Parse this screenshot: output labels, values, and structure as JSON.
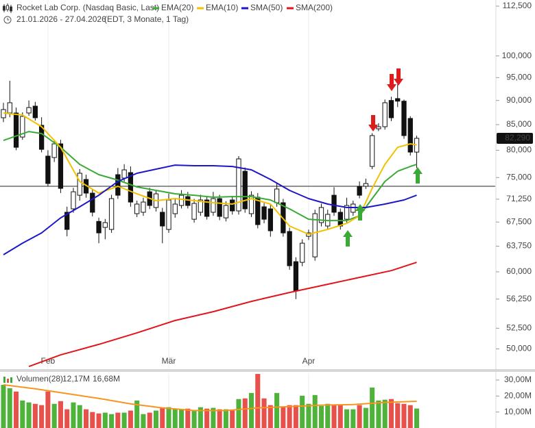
{
  "chart_data": [
    {
      "type": "candlestick",
      "title": "Rocket Lab Corp. (Nasdaq Basic, Last)",
      "subtitle": "21.01.2026 - 27.04.2026",
      "subtitle_note": "(EDT, 3 Monate, 1 Tag)",
      "log": true,
      "ylim": [
        47740,
        114150
      ],
      "xlim": [
        -0.54,
        77.35
      ],
      "xticks": [
        {
          "value": 7,
          "label": "Feb"
        },
        {
          "value": 26,
          "label": "Mär"
        },
        {
          "value": 48,
          "label": "Apr"
        }
      ],
      "yticks": [
        {
          "value": 112500,
          "label": "112,500"
        },
        {
          "value": 100000,
          "label": "100,000"
        },
        {
          "value": 95000,
          "label": "95,000"
        },
        {
          "value": 90000,
          "label": "90,000"
        },
        {
          "value": 85000,
          "label": "85,000"
        },
        {
          "value": 80000,
          "label": "80,000"
        },
        {
          "value": 75000,
          "label": "75,000"
        },
        {
          "value": 71250,
          "label": "71,250"
        },
        {
          "value": 67500,
          "label": "67,500"
        },
        {
          "value": 63750,
          "label": "63,750"
        },
        {
          "value": 60000,
          "label": "60,000"
        },
        {
          "value": 56250,
          "label": "56,250"
        },
        {
          "value": 52500,
          "label": "52,500"
        },
        {
          "value": 50000,
          "label": "50,000"
        }
      ],
      "last_price": {
        "value": 82290,
        "label": "82,290"
      },
      "reference_line": 73460,
      "open": [
        86390,
        87370,
        87370,
        82540,
        87370,
        88800,
        84860,
        78900,
        78630,
        81220,
        69080,
        69640,
        71920,
        74660,
        72280,
        67600,
        66650,
        66330,
        75510,
        74900,
        75880,
        68850,
        69080,
        72510,
        69860,
        69080,
        66330,
        68850,
        70200,
        71690,
        67950,
        69080,
        71120,
        69080,
        71350,
        68170,
        71120,
        69300,
        76120,
        68850,
        71580,
        69980,
        69640,
        70660,
        70660,
        66010,
        61460,
        61360,
        65260,
        62160,
        67410,
        66870,
        71920,
        69080,
        67950,
        69080,
        73460,
        73460,
        76990,
        84170,
        84580,
        90000,
        90400,
        89850,
        86250,
        79650
      ],
      "high": [
        89500,
        94280,
        88500,
        87500,
        90000,
        89700,
        86500,
        80000,
        82000,
        82000,
        70000,
        73200,
        76500,
        75500,
        73000,
        68200,
        68000,
        72000,
        76700,
        77400,
        77000,
        71000,
        71500,
        73200,
        72800,
        69800,
        72200,
        71400,
        72800,
        72500,
        71300,
        72000,
        71800,
        72500,
        72000,
        70900,
        71800,
        78900,
        76800,
        72600,
        72300,
        70600,
        70300,
        74000,
        71300,
        66600,
        62100,
        64800,
        66300,
        69500,
        70500,
        69500,
        73300,
        69700,
        71500,
        71000,
        74300,
        74800,
        83300,
        85300,
        90200,
        90800,
        93500,
        90200,
        86700,
        82800
      ],
      "low": [
        85500,
        86500,
        80000,
        82000,
        86800,
        85800,
        79600,
        73500,
        77800,
        72300,
        65260,
        69000,
        71000,
        71500,
        68400,
        64200,
        64800,
        65800,
        71300,
        74300,
        70000,
        68300,
        68500,
        69600,
        69200,
        64200,
        65800,
        68200,
        69700,
        69700,
        67400,
        68500,
        67900,
        68500,
        67800,
        67600,
        68700,
        68700,
        69000,
        68300,
        66500,
        67300,
        65200,
        70000,
        65200,
        60300,
        56250,
        60800,
        64700,
        61600,
        66800,
        66300,
        68500,
        66300,
        67400,
        68500,
        71400,
        73000,
        76500,
        83700,
        84000,
        85700,
        88600,
        82200,
        79000,
        76700
      ],
      "close": [
        88080,
        89520,
        80560,
        86670,
        88500,
        86390,
        80170,
        73940,
        81220,
        73100,
        66330,
        72510,
        75760,
        72280,
        69080,
        65790,
        67410,
        71350,
        71920,
        76370,
        70770,
        70430,
        70770,
        70200,
        72160,
        66870,
        71120,
        70430,
        71920,
        70200,
        70540,
        71120,
        68410,
        71350,
        68410,
        70200,
        69300,
        78380,
        69640,
        71920,
        67090,
        67950,
        66120,
        72990,
        65790,
        60870,
        57330,
        64210,
        65790,
        68850,
        69860,
        68740,
        69080,
        66870,
        70200,
        70430,
        71920,
        73940,
        82820,
        84580,
        89520,
        86390,
        89850,
        82820,
        79650,
        82290
      ],
      "series": [
        {
          "name": "EMA(20)",
          "color": "#3aa935",
          "x": [
            0,
            4,
            6,
            9,
            12,
            15,
            18,
            21,
            24,
            27,
            30,
            33,
            36,
            39,
            42,
            45,
            48,
            51,
            54,
            56,
            58,
            60,
            62,
            64,
            65
          ],
          "values": [
            81880,
            83620,
            83220,
            80560,
            77370,
            75510,
            74540,
            73340,
            72750,
            72160,
            71920,
            71580,
            71690,
            71690,
            71120,
            69640,
            67950,
            67730,
            67730,
            68510,
            71350,
            74300,
            76120,
            76990,
            77370
          ]
        },
        {
          "name": "EMA(10)",
          "color": "#f2c200",
          "x": [
            0,
            3,
            6,
            9,
            12,
            15,
            18,
            21,
            24,
            27,
            30,
            33,
            36,
            39,
            42,
            45,
            48,
            51,
            54,
            56,
            58,
            60,
            62,
            64,
            65
          ],
          "values": [
            87370,
            86950,
            84580,
            80560,
            74300,
            72280,
            73460,
            72160,
            71000,
            71350,
            71000,
            70660,
            70430,
            71350,
            70430,
            66870,
            65580,
            66330,
            67300,
            68510,
            73100,
            77370,
            80560,
            81220,
            81000
          ]
        },
        {
          "name": "SMA(50)",
          "color": "#1c16c8",
          "x": [
            0,
            3,
            6,
            9,
            12,
            15,
            18,
            21,
            24,
            27,
            30,
            33,
            36,
            39,
            42,
            45,
            48,
            51,
            54,
            57,
            60,
            63,
            65
          ],
          "values": [
            62470,
            64210,
            65790,
            68170,
            69980,
            71920,
            74300,
            75760,
            76500,
            77240,
            77120,
            77120,
            76990,
            76370,
            74660,
            72750,
            71350,
            70430,
            69860,
            69860,
            70430,
            71120,
            71920
          ]
        },
        {
          "name": "SMA(200)",
          "color": "#e2141b",
          "x": [
            4,
            9,
            15,
            21,
            27,
            33,
            39,
            45,
            51,
            57,
            61,
            65
          ],
          "values": [
            47960,
            49300,
            50530,
            51930,
            53470,
            54600,
            55950,
            57140,
            58260,
            59400,
            60170,
            61360
          ]
        }
      ]
    },
    {
      "type": "bar",
      "name": "Volumen(28)",
      "ylim": [
        0,
        34.25
      ],
      "yticks": [
        {
          "value": 30,
          "label": "30,00M"
        },
        {
          "value": 20,
          "label": "20,00M"
        },
        {
          "value": 10,
          "label": "10,00M"
        }
      ],
      "up_color": "#4fb33b",
      "down_color": "#e6514b",
      "values": [
        27.0,
        24.9,
        22.8,
        17.2,
        16.0,
        15.1,
        14.3,
        22.8,
        15.1,
        16.8,
        11.7,
        16.0,
        14.3,
        11.7,
        10.0,
        9.1,
        9.6,
        8.7,
        9.6,
        9.6,
        10.9,
        17.2,
        8.7,
        9.6,
        10.9,
        12.6,
        13.0,
        12.1,
        11.7,
        12.1,
        10.9,
        13.0,
        12.1,
        12.6,
        11.7,
        11.7,
        10.9,
        18.1,
        18.5,
        21.9,
        33.8,
        18.5,
        14.3,
        21.9,
        13.4,
        14.3,
        14.3,
        20.2,
        15.1,
        20.6,
        13.8,
        15.1,
        14.3,
        14.3,
        11.7,
        11.7,
        14.3,
        12.6,
        25.3,
        17.2,
        17.7,
        18.1,
        15.5,
        15.1,
        14.3,
        12.17
      ],
      "current": {
        "value": 12.17,
        "label": "12,17M",
        "color": "#3aa935"
      },
      "average": {
        "color": "#f7941d",
        "label": "16,68M",
        "x": [
          0,
          5,
          10,
          15,
          20,
          25,
          30,
          35,
          40,
          45,
          50,
          55,
          60,
          65
        ],
        "values": [
          27.0,
          24.5,
          21.5,
          18.5,
          15.1,
          12.6,
          10.9,
          10.9,
          12.6,
          13.4,
          14.3,
          14.7,
          16.0,
          16.68
        ]
      }
    }
  ]
}
